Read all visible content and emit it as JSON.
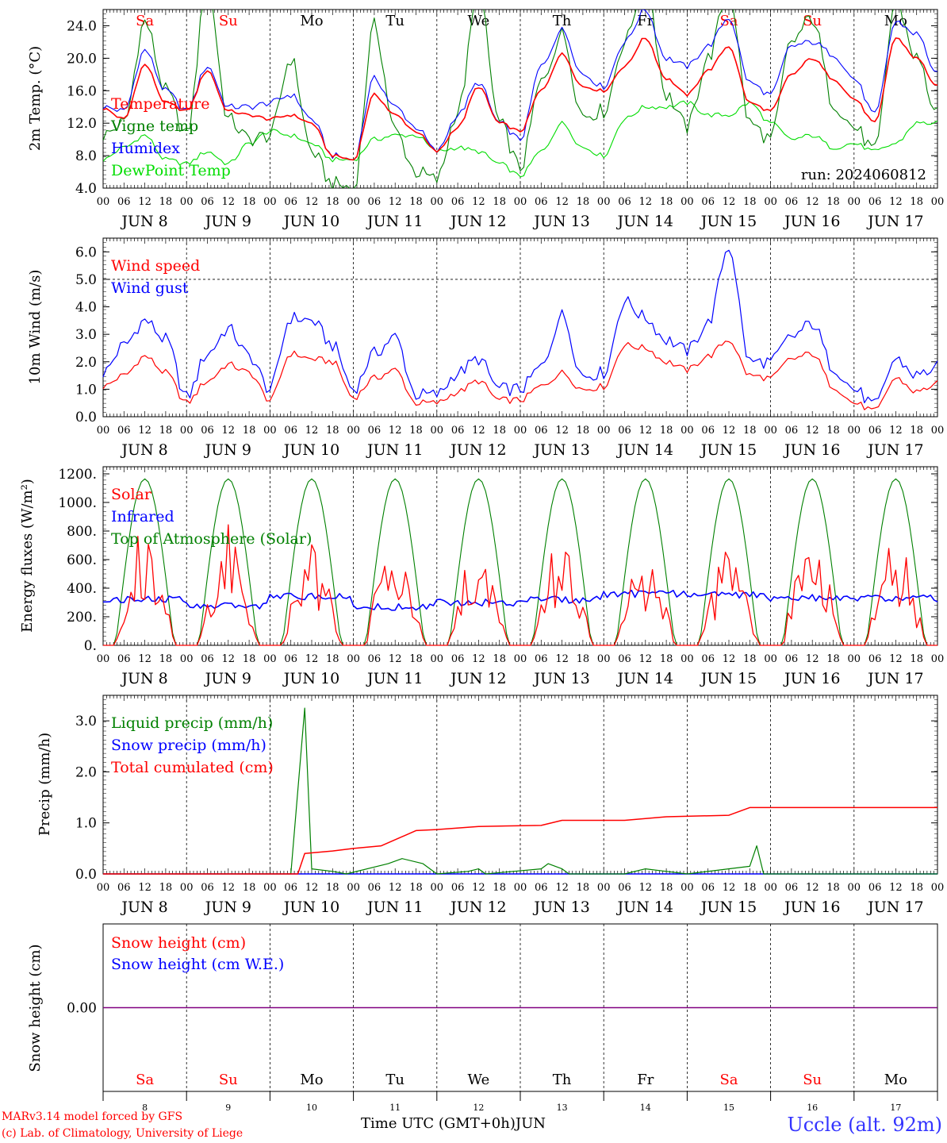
{
  "run_label": "run: 2024060812",
  "days": [
    "Sa",
    "Su",
    "Mo",
    "Tu",
    "We",
    "Th",
    "Fr",
    "Sa",
    "Su",
    "Mo"
  ],
  "weekend_days": [
    0,
    1,
    7,
    8
  ],
  "dates": [
    "JUN  8",
    "JUN  9",
    "JUN 10",
    "JUN 11",
    "JUN 12",
    "JUN 13",
    "JUN 14",
    "JUN 15",
    "JUN 16",
    "JUN 17"
  ],
  "bottom_dates": [
    "8",
    "9",
    "10",
    "11",
    "12",
    "13",
    "14",
    "15",
    "16",
    "17"
  ],
  "hour_ticks": [
    "00",
    "06",
    "12",
    "18"
  ],
  "last_hour_tick": "00",
  "footer": {
    "model": "MARv3.14 model forced by GFS",
    "credit": "(c) Lab. of Climatology, University of Liege",
    "xaxis": "Time UTC (GMT+0h)JUN",
    "station": "Uccle (alt. 92m)"
  },
  "colors": {
    "red": "#ff0000",
    "green": "#008000",
    "blue": "#0000ff",
    "lightgreen": "#00dd00",
    "purple": "#800080"
  },
  "chart_data": [
    {
      "type": "line",
      "ylabel": "2m Temp. (°C)",
      "ylim": [
        4,
        26
      ],
      "yticks": [
        "4.0",
        "8.0",
        "12.0",
        "16.0",
        "20.0",
        "24.0"
      ],
      "ytick_values": [
        4,
        8,
        12,
        16,
        20,
        24
      ],
      "x_hours": [
        0,
        6,
        12,
        18,
        24,
        30,
        36,
        42,
        48,
        54,
        60,
        66,
        72,
        78,
        84,
        90,
        96,
        102,
        108,
        114,
        120,
        126,
        132,
        138,
        144,
        150,
        156,
        162,
        168,
        174,
        180,
        186,
        192,
        198,
        204,
        210,
        216,
        222,
        228,
        234,
        240
      ],
      "series": [
        {
          "name": "Temperature",
          "color": "red",
          "values": [
            13.8,
            12.5,
            19.2,
            14.5,
            13.5,
            18.5,
            13.5,
            13.0,
            12.5,
            13.0,
            12.0,
            8.0,
            7.5,
            15.5,
            13.0,
            11.0,
            8.5,
            11.5,
            16.5,
            12.0,
            11.0,
            16.0,
            20.5,
            16.5,
            16.0,
            19.0,
            22.5,
            17.5,
            15.5,
            18.5,
            21.5,
            14.5,
            13.5,
            18.0,
            20.0,
            17.5,
            15.0,
            12.0,
            22.5,
            20.0,
            16.5
          ]
        },
        {
          "name": "Vigne temp",
          "color": "green",
          "values": [
            10.5,
            12.0,
            24.5,
            16.0,
            10.5,
            29.0,
            12.5,
            10.0,
            10.5,
            20.0,
            8.5,
            4.5,
            4.0,
            24.0,
            11.0,
            6.0,
            5.0,
            13.5,
            28.0,
            12.0,
            6.5,
            17.0,
            23.0,
            13.0,
            13.5,
            22.0,
            30.0,
            15.5,
            11.5,
            20.0,
            28.5,
            12.0,
            10.0,
            22.0,
            25.0,
            14.5,
            11.5,
            8.5,
            27.0,
            20.0,
            13.0
          ]
        },
        {
          "name": "Humidex",
          "color": "blue",
          "values": [
            14.0,
            13.5,
            21.0,
            16.0,
            13.5,
            19.0,
            14.0,
            14.0,
            14.5,
            15.5,
            12.5,
            8.0,
            7.5,
            17.5,
            14.0,
            11.5,
            8.5,
            13.0,
            17.0,
            12.0,
            10.0,
            19.0,
            23.5,
            18.0,
            16.5,
            22.0,
            26.0,
            20.0,
            19.0,
            21.5,
            25.0,
            17.0,
            15.5,
            21.5,
            22.0,
            20.5,
            17.5,
            13.0,
            24.5,
            23.0,
            18.0
          ]
        },
        {
          "name": "DewPoint Temp",
          "color": "lightgreen",
          "values": [
            7.5,
            9.0,
            10.5,
            7.5,
            7.0,
            8.5,
            7.0,
            9.5,
            11.0,
            10.5,
            9.5,
            7.5,
            7.5,
            10.0,
            10.5,
            10.5,
            8.5,
            9.0,
            8.5,
            7.0,
            5.5,
            8.5,
            12.0,
            9.0,
            8.0,
            12.5,
            14.0,
            14.0,
            14.5,
            13.0,
            13.0,
            14.5,
            12.0,
            10.0,
            10.5,
            9.0,
            9.5,
            8.5,
            9.5,
            12.0,
            12.0
          ]
        }
      ]
    },
    {
      "type": "line",
      "ylabel": "10m Wind (m/s)",
      "ylim": [
        0,
        6.5
      ],
      "yticks": [
        "0.0",
        "1.0",
        "2.0",
        "3.0",
        "4.0",
        "5.0",
        "6.0"
      ],
      "ytick_values": [
        0,
        1,
        2,
        3,
        4,
        5,
        6
      ],
      "dashed_level": 5.0,
      "x_hours": [
        0,
        6,
        12,
        18,
        24,
        30,
        36,
        42,
        48,
        54,
        60,
        66,
        72,
        78,
        84,
        90,
        96,
        102,
        108,
        114,
        120,
        126,
        132,
        138,
        144,
        150,
        156,
        162,
        168,
        174,
        180,
        186,
        192,
        198,
        204,
        210,
        216,
        222,
        228,
        234,
        240
      ],
      "series": [
        {
          "name": "Wind speed",
          "color": "red",
          "values": [
            1.1,
            1.5,
            2.2,
            1.6,
            0.5,
            1.3,
            1.9,
            1.6,
            0.6,
            2.3,
            2.1,
            2.0,
            0.7,
            1.4,
            1.7,
            0.5,
            0.5,
            0.9,
            1.3,
            0.6,
            0.6,
            1.1,
            1.6,
            1.0,
            1.1,
            2.6,
            2.5,
            2.0,
            1.7,
            2.2,
            2.8,
            1.5,
            1.4,
            2.1,
            2.3,
            1.1,
            0.5,
            0.2,
            1.4,
            0.9,
            1.2
          ]
        },
        {
          "name": "Wind gust",
          "color": "blue",
          "values": [
            1.6,
            2.6,
            3.5,
            2.8,
            0.7,
            2.3,
            3.2,
            2.2,
            1.0,
            3.6,
            3.5,
            2.6,
            1.0,
            2.3,
            2.9,
            0.8,
            0.8,
            1.6,
            2.1,
            1.0,
            1.0,
            1.8,
            3.7,
            1.5,
            1.6,
            4.2,
            3.6,
            2.8,
            2.4,
            3.4,
            6.2,
            2.0,
            2.0,
            2.9,
            3.4,
            1.8,
            1.0,
            0.4,
            2.1,
            1.5,
            1.8
          ]
        }
      ]
    },
    {
      "type": "line",
      "ylabel": "Energy fluxes (W/m²)",
      "ylim": [
        0,
        1250
      ],
      "yticks": [
        "0.",
        "200.",
        "400.",
        "600.",
        "800.",
        "1000.",
        "1200."
      ],
      "ytick_values": [
        0,
        200,
        400,
        600,
        800,
        1000,
        1200
      ],
      "toa_peak": 1165,
      "solar_daily_peaks": [
        840,
        880,
        710,
        860,
        790,
        780,
        650,
        680,
        860,
        740
      ],
      "infrared_mean": [
        320,
        280,
        340,
        270,
        300,
        320,
        360,
        350,
        330,
        330
      ],
      "series": [
        {
          "name": "Solar",
          "color": "red"
        },
        {
          "name": "Infrared",
          "color": "blue"
        },
        {
          "name": "Top of Atmosphere (Solar)",
          "color": "green"
        }
      ]
    },
    {
      "type": "line",
      "ylabel": "Precip (mm/h)",
      "ylim": [
        0,
        3.5
      ],
      "yticks": [
        "0.0",
        "1.0",
        "2.0",
        "3.0"
      ],
      "ytick_values": [
        0,
        1,
        2,
        3
      ],
      "liquid_points": [
        [
          0,
          0
        ],
        [
          54,
          0
        ],
        [
          58,
          3.25
        ],
        [
          60,
          0.1
        ],
        [
          66,
          0.05
        ],
        [
          70,
          0
        ],
        [
          82,
          0.2
        ],
        [
          86,
          0.3
        ],
        [
          92,
          0.2
        ],
        [
          96,
          0
        ],
        [
          105,
          0.05
        ],
        [
          108,
          0.1
        ],
        [
          110,
          0
        ],
        [
          126,
          0.1
        ],
        [
          128,
          0.2
        ],
        [
          132,
          0.1
        ],
        [
          134,
          0
        ],
        [
          150,
          0
        ],
        [
          156,
          0.1
        ],
        [
          162,
          0.05
        ],
        [
          168,
          0
        ],
        [
          186,
          0.15
        ],
        [
          188,
          0.55
        ],
        [
          190,
          0
        ],
        [
          240,
          0
        ]
      ],
      "cumulated_points": [
        [
          0,
          0
        ],
        [
          56,
          0
        ],
        [
          58,
          0.4
        ],
        [
          66,
          0.45
        ],
        [
          72,
          0.5
        ],
        [
          80,
          0.55
        ],
        [
          90,
          0.85
        ],
        [
          96,
          0.87
        ],
        [
          108,
          0.93
        ],
        [
          126,
          0.95
        ],
        [
          132,
          1.05
        ],
        [
          150,
          1.05
        ],
        [
          162,
          1.12
        ],
        [
          180,
          1.15
        ],
        [
          186,
          1.3
        ],
        [
          240,
          1.3
        ]
      ],
      "series": [
        {
          "name": "Liquid precip (mm/h)",
          "color": "green"
        },
        {
          "name": "Snow precip (mm/h)",
          "color": "blue"
        },
        {
          "name": "Total cumulated (cm)",
          "color": "red"
        }
      ]
    },
    {
      "type": "line",
      "ylabel": "Snow height (cm)",
      "ylim": [
        -1,
        1
      ],
      "yticks": [
        "0.00"
      ],
      "ytick_values": [
        0
      ],
      "series": [
        {
          "name": "Snow height (cm)",
          "color": "red",
          "values": [
            0,
            0
          ]
        },
        {
          "name": "Snow height (cm W.E.)",
          "color": "blue",
          "values": [
            0,
            0
          ]
        }
      ]
    }
  ]
}
